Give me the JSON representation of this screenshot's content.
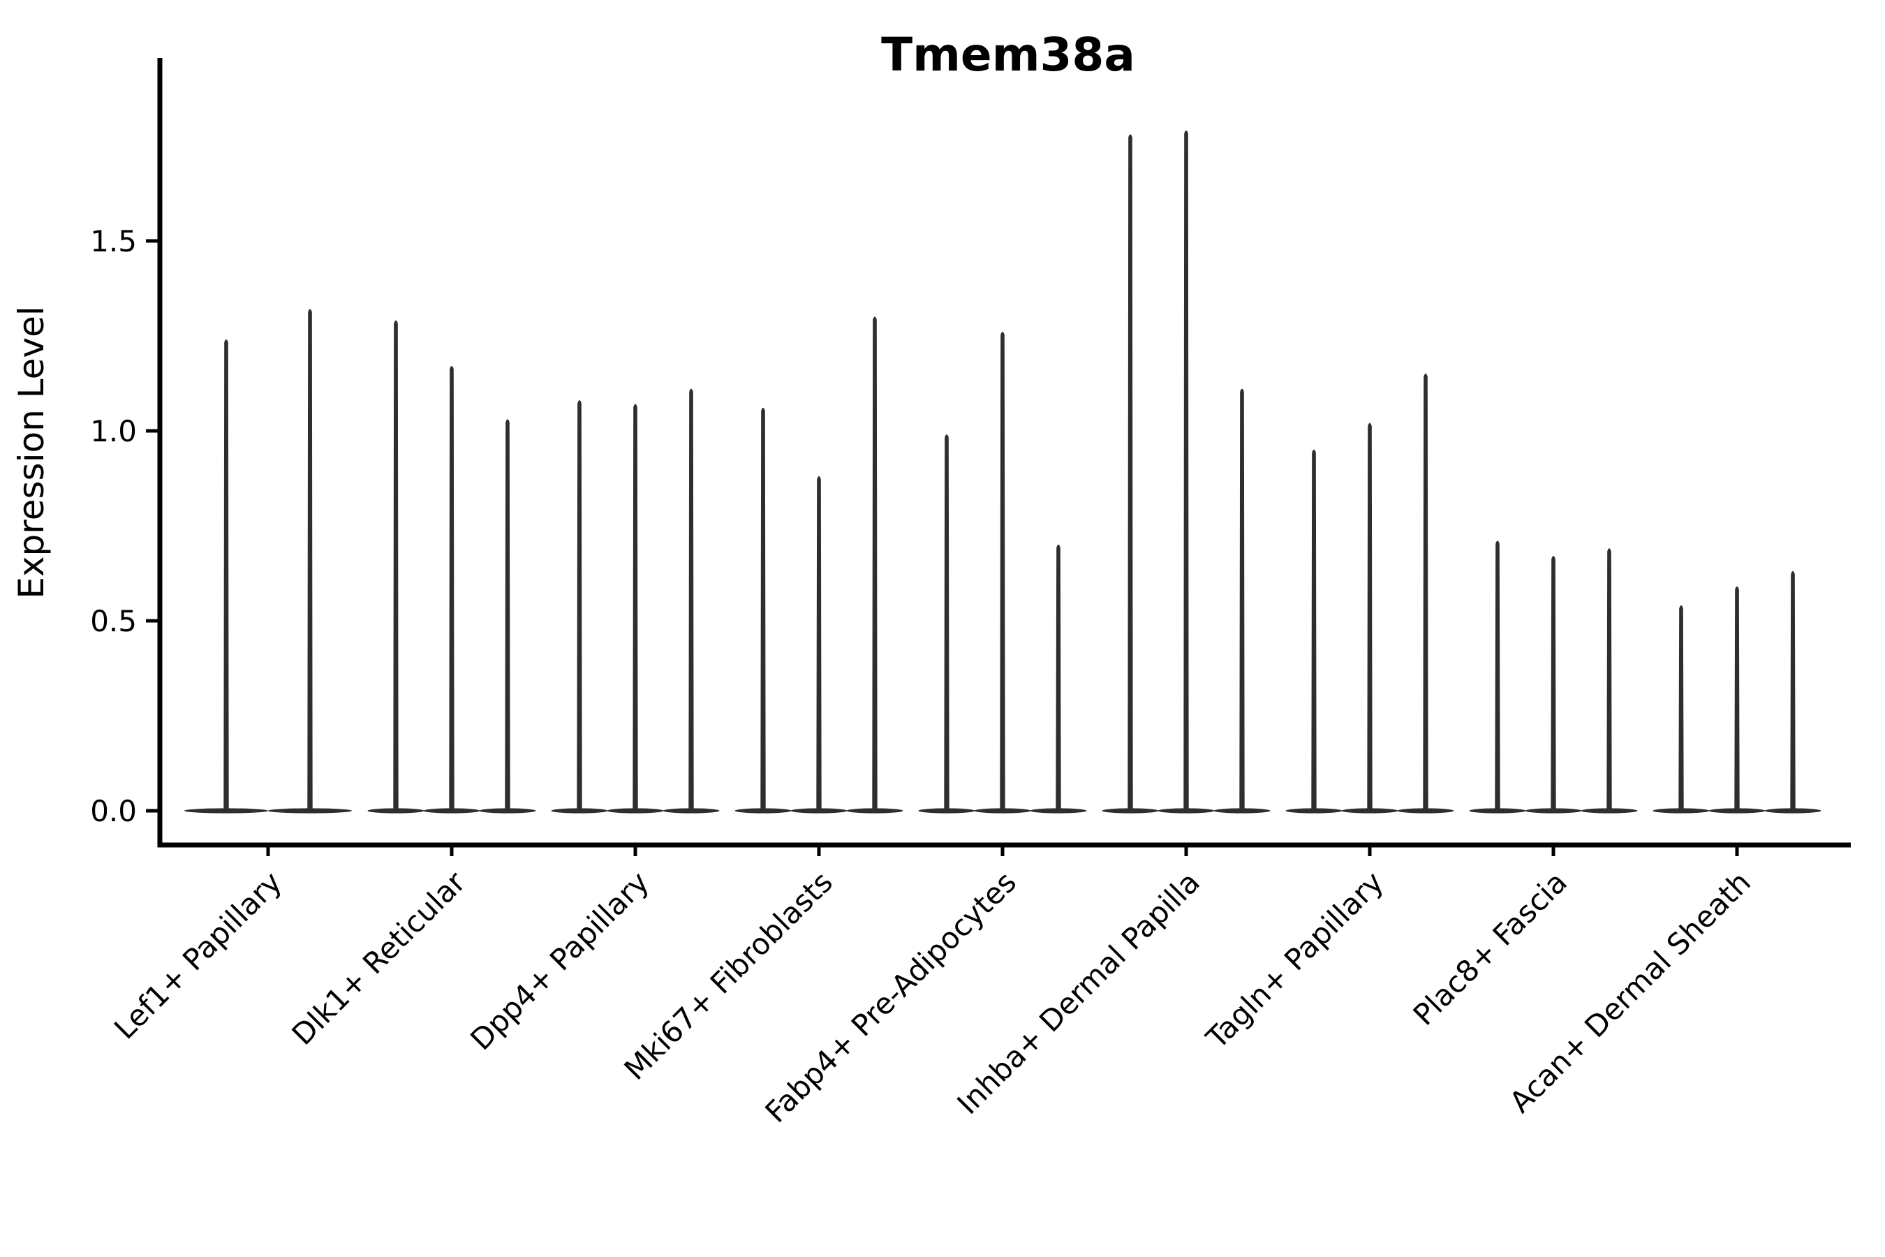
{
  "title": "Tmem38a",
  "chart_data": {
    "type": "violin",
    "title": "Tmem38a",
    "xlabel": "",
    "ylabel": "Expression Level",
    "ylim": [
      -0.09,
      1.98
    ],
    "yticks": [
      0.0,
      0.5,
      1.0,
      1.5
    ],
    "ytick_labels": [
      "0.0",
      "0.5",
      "1.0",
      "1.5"
    ],
    "grid": false,
    "legend": "none",
    "style": "needle-thin violins: density mass flattened at 0 with a thin vertical spike rising to each violin's maximum",
    "ink_color": "#2e2e2e",
    "axis_color": "#000000",
    "background_color": "#ffffff",
    "groups": [
      {
        "category": "Lef1+ Papillary",
        "violin_maxima": [
          1.24,
          1.32
        ]
      },
      {
        "category": "Dlk1+ Reticular",
        "violin_maxima": [
          1.29,
          1.17,
          1.03
        ]
      },
      {
        "category": "Dpp4+ Papillary",
        "violin_maxima": [
          1.08,
          1.07,
          1.11
        ]
      },
      {
        "category": "Mki67+ Fibroblasts",
        "violin_maxima": [
          1.06,
          0.88,
          1.3
        ]
      },
      {
        "category": "Fabp4+ Pre-Adipocytes",
        "violin_maxima": [
          0.99,
          1.26,
          0.7
        ]
      },
      {
        "category": "Inhba+ Dermal Papilla",
        "violin_maxima": [
          1.78,
          1.79,
          1.11
        ]
      },
      {
        "category": "Tagln+ Papillary",
        "violin_maxima": [
          0.95,
          1.02,
          1.15
        ]
      },
      {
        "category": "Plac8+ Fascia",
        "violin_maxima": [
          0.71,
          0.67,
          0.69
        ]
      },
      {
        "category": "Acan+ Dermal Sheath",
        "violin_maxima": [
          0.54,
          0.59,
          0.63
        ]
      }
    ]
  }
}
